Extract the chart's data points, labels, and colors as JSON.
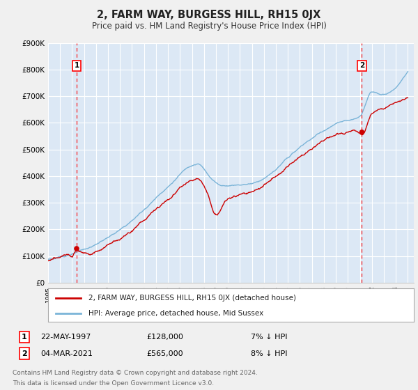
{
  "title": "2, FARM WAY, BURGESS HILL, RH15 0JX",
  "subtitle": "Price paid vs. HM Land Registry's House Price Index (HPI)",
  "ylim": [
    0,
    900000
  ],
  "yticks": [
    0,
    100000,
    200000,
    300000,
    400000,
    500000,
    600000,
    700000,
    800000,
    900000
  ],
  "ytick_labels": [
    "£0",
    "£100K",
    "£200K",
    "£300K",
    "£400K",
    "£500K",
    "£600K",
    "£700K",
    "£800K",
    "£900K"
  ],
  "bg_color": "#f0f0f0",
  "plot_bg_color": "#dce8f5",
  "grid_color": "#ffffff",
  "hpi_color": "#7ab4d8",
  "price_color": "#cc0000",
  "purchase1_x": 1997.38,
  "purchase1_y": 128000,
  "purchase2_x": 2021.17,
  "purchase2_y": 565000,
  "legend_label_price": "2, FARM WAY, BURGESS HILL, RH15 0JX (detached house)",
  "legend_label_hpi": "HPI: Average price, detached house, Mid Sussex",
  "footnote3": "Contains HM Land Registry data © Crown copyright and database right 2024.",
  "footnote4": "This data is licensed under the Open Government Licence v3.0.",
  "xmin": 1995,
  "xmax": 2025.5
}
